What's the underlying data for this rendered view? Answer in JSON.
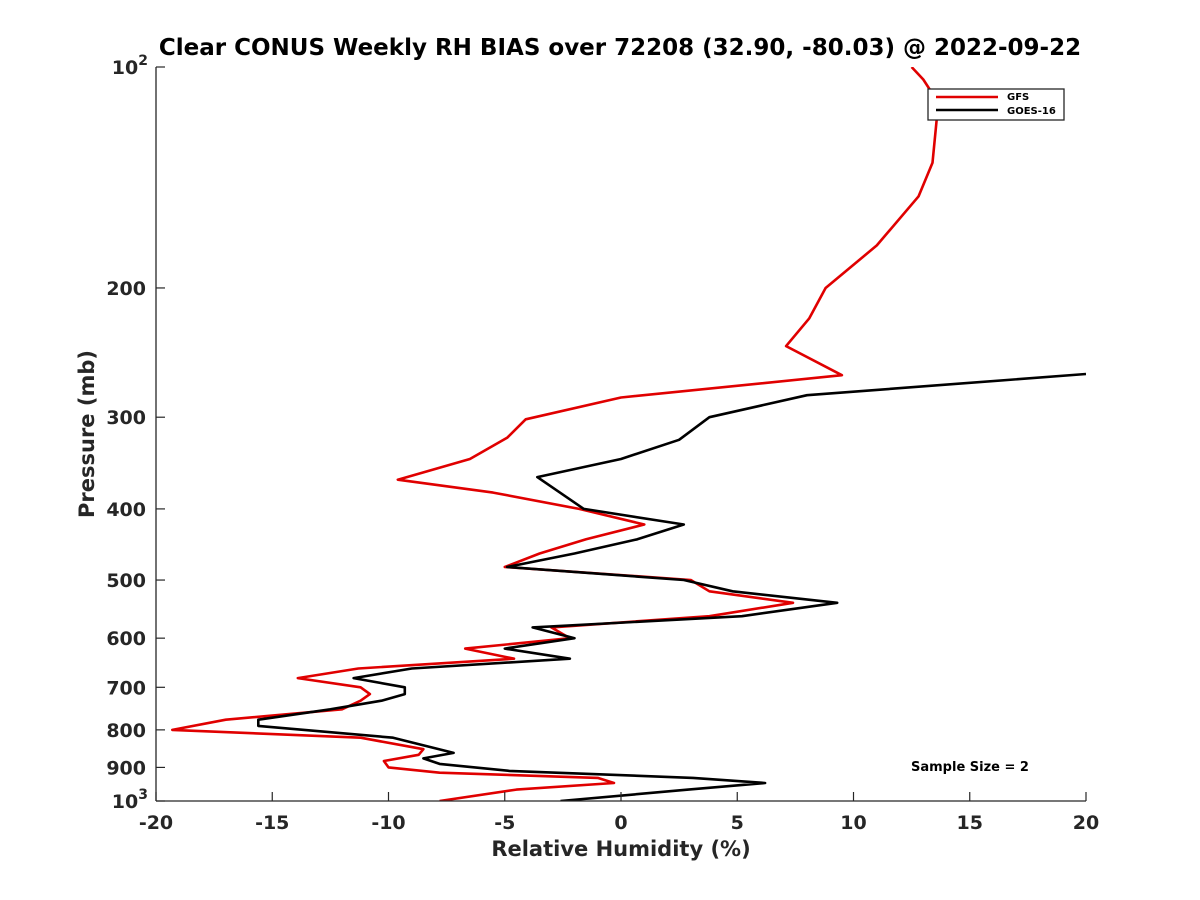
{
  "chart_data": {
    "type": "line",
    "title": "Clear CONUS Weekly RH BIAS over 72208 (32.90, -80.03) @ 2022-09-22",
    "xlabel": "Relative Humidity (%)",
    "ylabel": "Pressure (mb)",
    "xlim": [
      -20,
      20
    ],
    "ylim": [
      100,
      1000
    ],
    "y_scale": "log",
    "y_reversed": true,
    "grid": false,
    "legend_position": "top-right",
    "x_ticks": [
      -20,
      -15,
      -10,
      -5,
      0,
      5,
      10,
      15,
      20
    ],
    "y_ticks": [
      {
        "value": 100,
        "label_base": "10",
        "label_exp": "2"
      },
      {
        "value": 200,
        "label_base": "200",
        "label_exp": ""
      },
      {
        "value": 300,
        "label_base": "300",
        "label_exp": ""
      },
      {
        "value": 400,
        "label_base": "400",
        "label_exp": ""
      },
      {
        "value": 500,
        "label_base": "500",
        "label_exp": ""
      },
      {
        "value": 600,
        "label_base": "600",
        "label_exp": ""
      },
      {
        "value": 700,
        "label_base": "700",
        "label_exp": ""
      },
      {
        "value": 800,
        "label_base": "800",
        "label_exp": ""
      },
      {
        "value": 900,
        "label_base": "900",
        "label_exp": ""
      },
      {
        "value": 1000,
        "label_base": "10",
        "label_exp": "3"
      }
    ],
    "series": [
      {
        "name": "GFS",
        "color": "#e00000",
        "points": [
          [
            12.5,
            100
          ],
          [
            13.0,
            104
          ],
          [
            13.5,
            110
          ],
          [
            13.6,
            116
          ],
          [
            13.4,
            135
          ],
          [
            12.8,
            150
          ],
          [
            11.0,
            175
          ],
          [
            8.8,
            200
          ],
          [
            8.1,
            220
          ],
          [
            7.1,
            240
          ],
          [
            9.5,
            263
          ],
          [
            0.0,
            282
          ],
          [
            -4.1,
            302
          ],
          [
            -4.9,
            320
          ],
          [
            -6.5,
            342
          ],
          [
            -9.6,
            365
          ],
          [
            -5.5,
            380
          ],
          [
            -1.8,
            400
          ],
          [
            1.0,
            420
          ],
          [
            -1.5,
            440
          ],
          [
            -3.5,
            460
          ],
          [
            -5.0,
            480
          ],
          [
            3.0,
            500
          ],
          [
            3.8,
            518
          ],
          [
            7.4,
            537
          ],
          [
            3.8,
            560
          ],
          [
            -3.0,
            580
          ],
          [
            -2.2,
            600
          ],
          [
            -6.7,
            620
          ],
          [
            -4.6,
            640
          ],
          [
            -11.3,
            660
          ],
          [
            -13.9,
            680
          ],
          [
            -11.2,
            700
          ],
          [
            -10.8,
            715
          ],
          [
            -11.2,
            730
          ],
          [
            -12.0,
            750
          ],
          [
            -17.0,
            775
          ],
          [
            -19.3,
            800
          ],
          [
            -11.2,
            820
          ],
          [
            -8.5,
            850
          ],
          [
            -8.7,
            865
          ],
          [
            -10.2,
            882
          ],
          [
            -10.0,
            900
          ],
          [
            -7.8,
            915
          ],
          [
            -1.0,
            930
          ],
          [
            -0.3,
            945
          ],
          [
            -4.5,
            965
          ],
          [
            -7.8,
            1000
          ]
        ]
      },
      {
        "name": "GOES-16",
        "color": "#000000",
        "points": [
          [
            20.0,
            262
          ],
          [
            8.0,
            280
          ],
          [
            3.8,
            300
          ],
          [
            2.5,
            322
          ],
          [
            0.0,
            342
          ],
          [
            -3.6,
            362
          ],
          [
            -1.6,
            400
          ],
          [
            2.7,
            420
          ],
          [
            0.7,
            440
          ],
          [
            -2.0,
            460
          ],
          [
            -4.9,
            480
          ],
          [
            2.7,
            500
          ],
          [
            4.8,
            518
          ],
          [
            9.3,
            537
          ],
          [
            5.2,
            560
          ],
          [
            -3.8,
            580
          ],
          [
            -2.0,
            600
          ],
          [
            -5.0,
            620
          ],
          [
            -2.2,
            640
          ],
          [
            -9.0,
            660
          ],
          [
            -11.5,
            680
          ],
          [
            -9.3,
            700
          ],
          [
            -9.3,
            715
          ],
          [
            -10.3,
            730
          ],
          [
            -12.5,
            750
          ],
          [
            -15.6,
            775
          ],
          [
            -15.6,
            790
          ],
          [
            -9.8,
            820
          ],
          [
            -7.2,
            860
          ],
          [
            -8.5,
            875
          ],
          [
            -7.8,
            890
          ],
          [
            -4.8,
            910
          ],
          [
            3.1,
            930
          ],
          [
            6.2,
            945
          ],
          [
            2.9,
            965
          ],
          [
            -2.6,
            1000
          ]
        ]
      }
    ],
    "annotation": "Sample Size = 2"
  }
}
